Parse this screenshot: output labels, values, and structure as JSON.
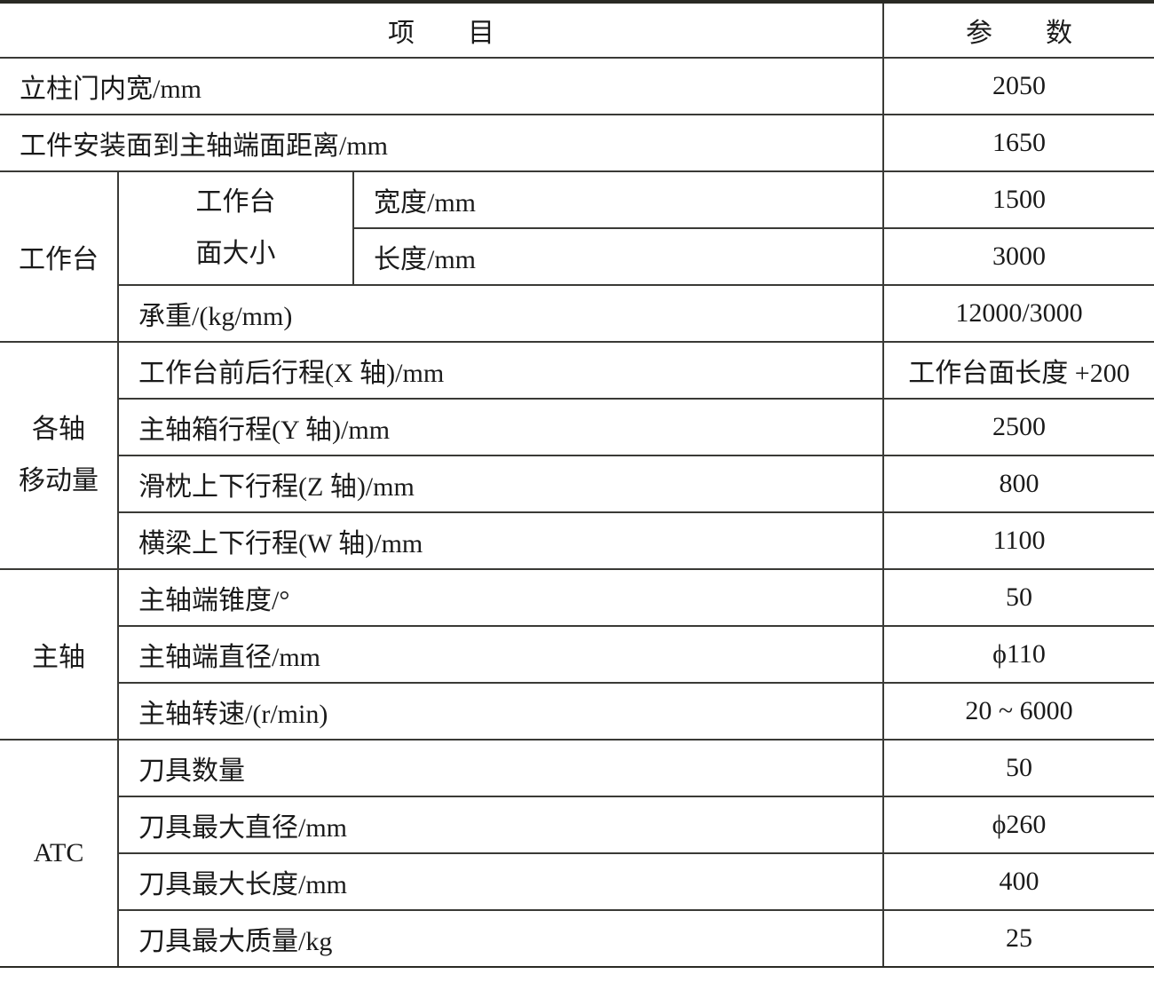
{
  "header": {
    "item": "项　　目",
    "param": "参　　数"
  },
  "rows": {
    "column_door_width": {
      "label": "立柱门内宽/mm",
      "value": "2050"
    },
    "mount_to_spindle": {
      "label": "工件安装面到主轴端面距离/mm",
      "value": "1650"
    }
  },
  "worktable": {
    "group": "工作台",
    "size_group_line1": "工作台",
    "size_group_line2": "面大小",
    "width": {
      "label": "宽度/mm",
      "value": "1500"
    },
    "length": {
      "label": "长度/mm",
      "value": "3000"
    },
    "load": {
      "label": "承重/(kg/mm)",
      "value": "12000/3000"
    }
  },
  "axes": {
    "group_line1": "各轴",
    "group_line2": "移动量",
    "x": {
      "label": "工作台前后行程(X 轴)/mm",
      "value": "工作台面长度 +200"
    },
    "y": {
      "label": "主轴箱行程(Y 轴)/mm",
      "value": "2500"
    },
    "z": {
      "label": "滑枕上下行程(Z 轴)/mm",
      "value": "800"
    },
    "w": {
      "label": "横梁上下行程(W 轴)/mm",
      "value": "1100"
    }
  },
  "spindle": {
    "group": "主轴",
    "taper": {
      "label": "主轴端锥度/°",
      "value": "50"
    },
    "diameter": {
      "label": "主轴端直径/mm",
      "value": "ϕ110"
    },
    "speed": {
      "label": "主轴转速/(r/min)",
      "value": "20 ~ 6000"
    }
  },
  "atc": {
    "group": "ATC",
    "count": {
      "label": "刀具数量",
      "value": "50"
    },
    "max_diameter": {
      "label": "刀具最大直径/mm",
      "value": "ϕ260"
    },
    "max_length": {
      "label": "刀具最大长度/mm",
      "value": "400"
    },
    "max_mass": {
      "label": "刀具最大质量/kg",
      "value": "25"
    }
  }
}
